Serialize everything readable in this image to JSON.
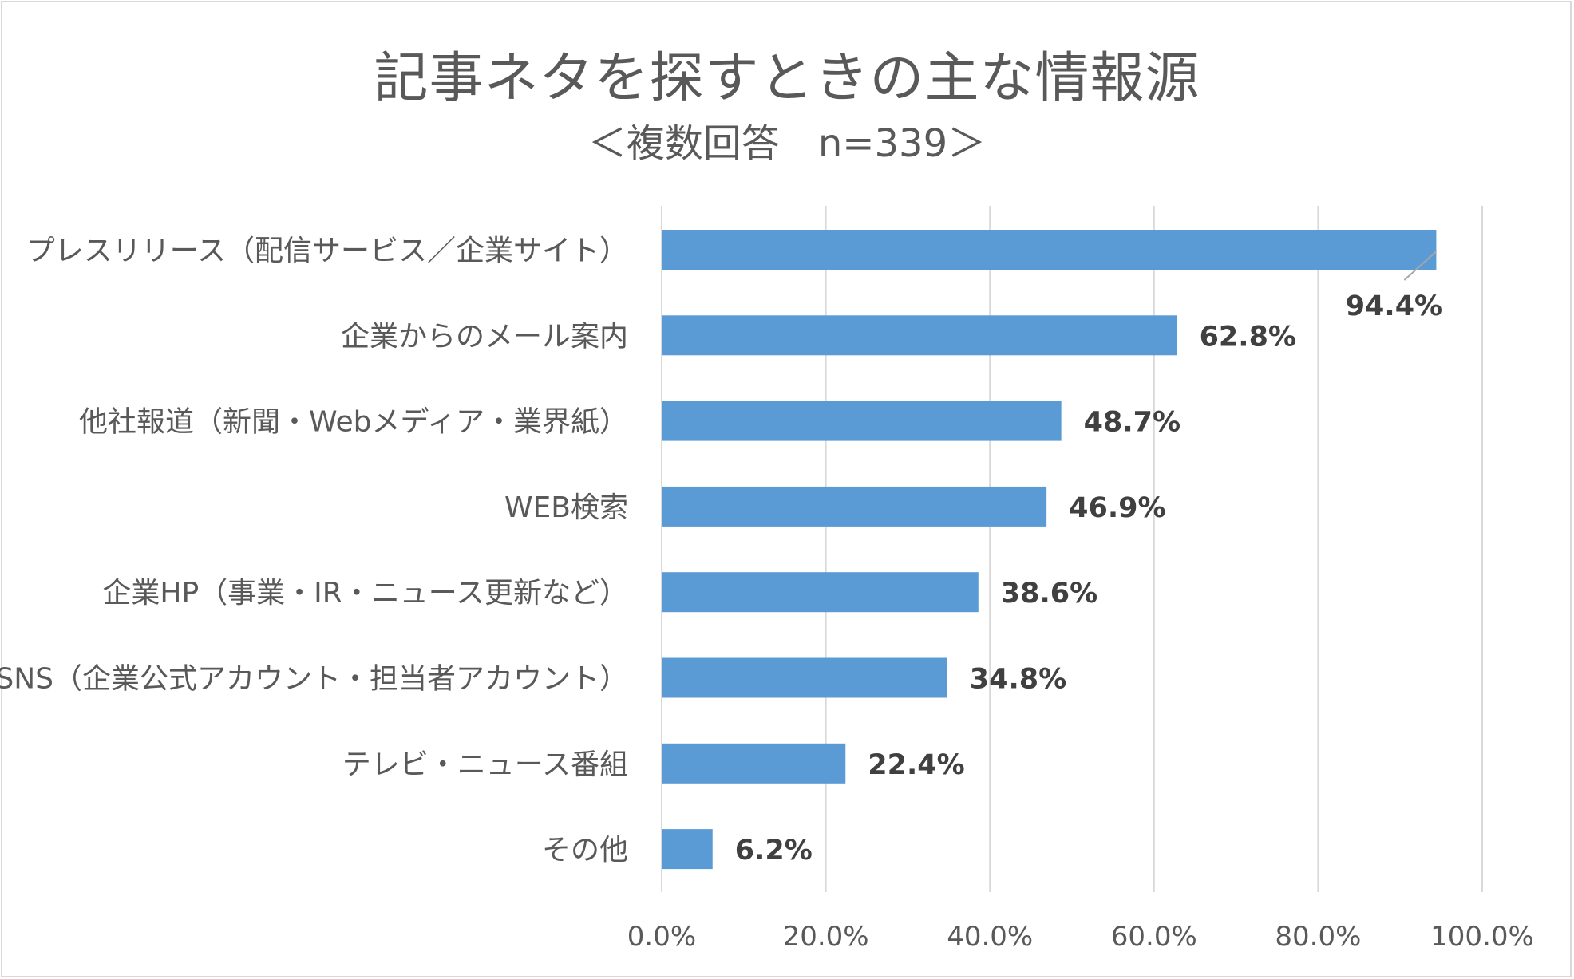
{
  "chart_data": {
    "type": "bar",
    "orientation": "horizontal",
    "title": "記事ネタを探すときの主な情報源",
    "subtitle": "＜複数回答　n=339＞",
    "categories": [
      "プレスリリース（配信サービス／企業サイト）",
      "企業からのメール案内",
      "他社報道（新聞・Webメディア・業界紙）",
      "WEB検索",
      "企業HP（事業・IR・ニュース更新など）",
      "SNS（企業公式アカウント・担当者アカウント）",
      "テレビ・ニュース番組",
      "その他"
    ],
    "values": [
      94.4,
      62.8,
      48.7,
      46.9,
      38.6,
      34.8,
      22.4,
      6.2
    ],
    "value_labels": [
      "94.4%",
      "62.8%",
      "48.7%",
      "46.9%",
      "38.6%",
      "34.8%",
      "22.4%",
      "6.2%"
    ],
    "xlim": [
      0,
      100
    ],
    "x_ticks": [
      0,
      20,
      40,
      60,
      80,
      100
    ],
    "x_tick_labels": [
      "0.0%",
      "20.0%",
      "40.0%",
      "60.0%",
      "80.0%",
      "100.0%"
    ],
    "grid": true,
    "bar_color": "#5b9bd5",
    "grid_color": "#d9d9d9"
  }
}
